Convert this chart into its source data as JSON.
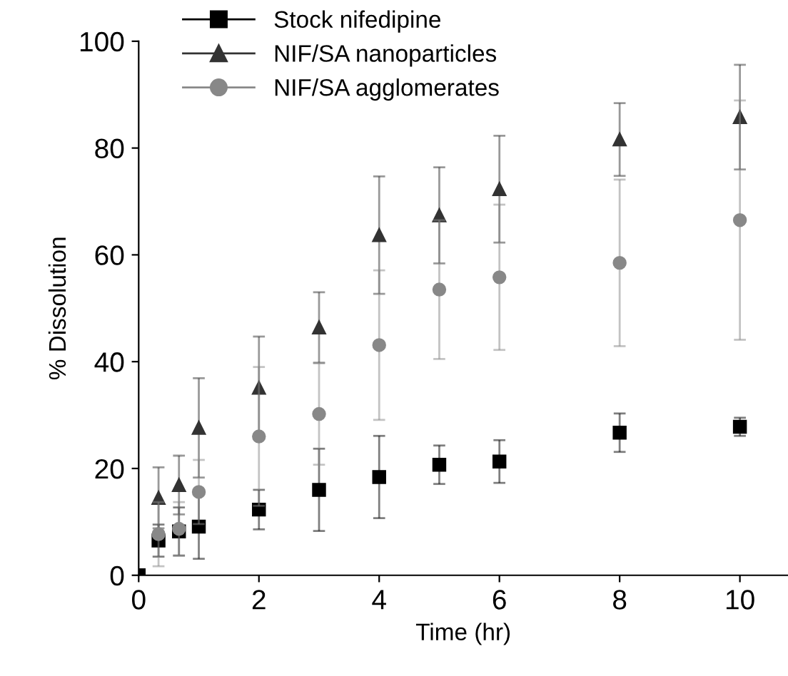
{
  "chart_data": {
    "type": "scatter",
    "xlabel": "Time (hr)",
    "ylabel": "% Dissolution",
    "x": [
      0,
      0.33,
      0.67,
      1,
      2,
      3,
      4,
      5,
      6,
      8,
      10
    ],
    "xlim": [
      0,
      10.8
    ],
    "xticks": [
      0,
      2,
      4,
      6,
      8,
      10
    ],
    "ylim": [
      0,
      100
    ],
    "yticks": [
      0,
      20,
      40,
      60,
      80,
      100
    ],
    "grid": false,
    "legend": "top left",
    "series": [
      {
        "name": "Stock nifedipine",
        "color": "#000000",
        "marker": "square",
        "values": [
          0,
          6.5,
          8.2,
          9.1,
          12.3,
          16,
          18.4,
          20.7,
          21.3,
          26.7,
          27.8
        ],
        "errors": [
          null,
          3,
          4.5,
          6,
          3.7,
          7.7,
          7.7,
          3.6,
          4,
          3.6,
          1.7
        ]
      },
      {
        "name": "NIF/SA nanoparticles",
        "color": "#333333",
        "marker": "triangle",
        "values": [
          null,
          14.5,
          16.9,
          27.6,
          35.1,
          46.4,
          63.7,
          67.4,
          72.3,
          81.6,
          85.8
        ],
        "errors": [
          null,
          5.7,
          5.5,
          9.3,
          9.6,
          6.6,
          11,
          9,
          10,
          6.8,
          9.8
        ]
      },
      {
        "name": "NIF/SA agglomerates",
        "color": "#888888",
        "marker": "circle",
        "values": [
          null,
          7.7,
          8.7,
          15.6,
          26,
          30.2,
          43.1,
          53.5,
          55.8,
          58.5,
          66.5
        ],
        "errors": [
          null,
          6,
          5,
          6,
          13,
          9.5,
          14,
          13,
          13.6,
          15.6,
          22.4
        ]
      }
    ]
  }
}
